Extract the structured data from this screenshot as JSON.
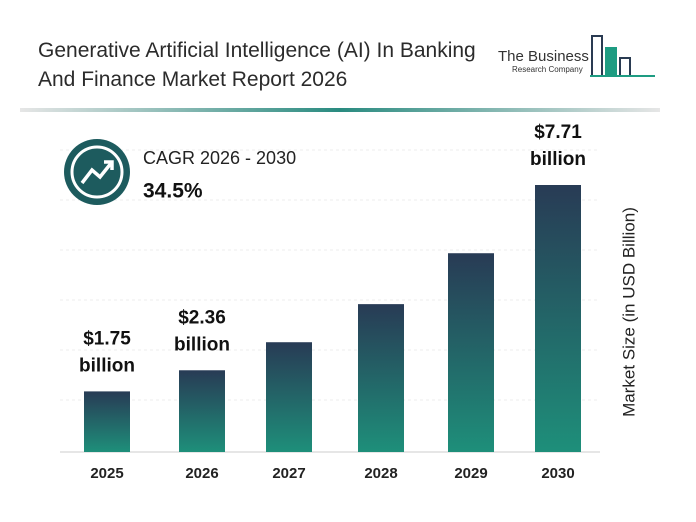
{
  "header": {
    "title": "Generative Artificial Intelligence (AI) In Banking And Finance Market Report 2026",
    "logo_line1": "The Business",
    "logo_line2": "Research Company"
  },
  "cagr": {
    "label": "CAGR 2026 - 2030",
    "value": "34.5%"
  },
  "chart_data": {
    "type": "bar",
    "y_label": "Market Size (in USD Billion)",
    "categories": [
      "2025",
      "2026",
      "2027",
      "2028",
      "2029",
      "2030"
    ],
    "values": [
      1.75,
      2.36,
      3.17,
      4.27,
      5.74,
      7.71
    ],
    "value_labels": [
      "$1.75 billion",
      "$2.36 billion",
      null,
      null,
      null,
      "$7.71 billion"
    ],
    "gradient": [
      "#283b55",
      "#1e8f7a"
    ]
  }
}
